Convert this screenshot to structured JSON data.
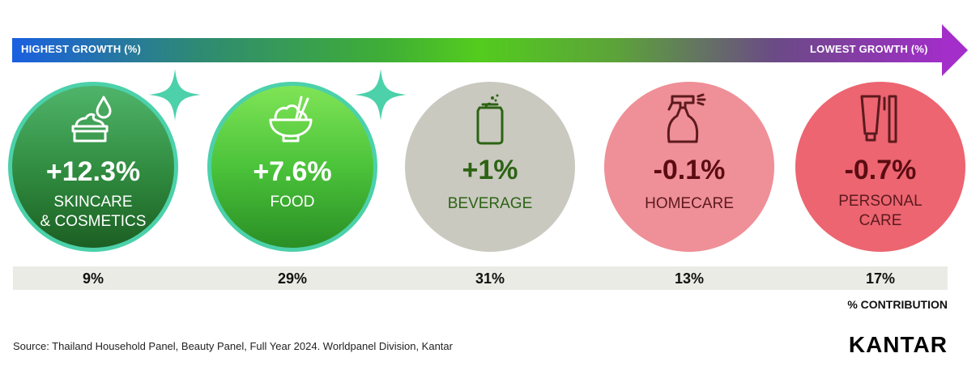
{
  "header": {
    "left_label": "HIGHEST GROWTH (%)",
    "right_label": "LOWEST GROWTH (%)"
  },
  "chart_data": {
    "type": "bar",
    "title": "",
    "categories": [
      "SKINCARE & COSMETICS",
      "FOOD",
      "BEVERAGE",
      "HOMECARE",
      "PERSONAL CARE"
    ],
    "series": [
      {
        "name": "Growth (%)",
        "values": [
          12.3,
          7.6,
          1,
          -0.1,
          -0.7
        ]
      },
      {
        "name": "% CONTRIBUTION",
        "values": [
          9,
          29,
          31,
          13,
          17
        ]
      }
    ]
  },
  "categories": [
    {
      "name": "SKINCARE\n& COSMETICS",
      "growth": "+12.3%",
      "contribution": "9%",
      "icon": "cream-jar-icon",
      "color": "#2f8a3e"
    },
    {
      "name": "FOOD",
      "growth": "+7.6%",
      "contribution": "29%",
      "icon": "rice-bowl-icon",
      "color": "#4bc33a"
    },
    {
      "name": "BEVERAGE",
      "growth": "+1%",
      "contribution": "31%",
      "icon": "can-icon",
      "color": "#c9c9c0"
    },
    {
      "name": "HOMECARE",
      "growth": "-0.1%",
      "contribution": "13%",
      "icon": "spray-bottle-icon",
      "color": "#ef8f97"
    },
    {
      "name": "PERSONAL\nCARE",
      "growth": "-0.7%",
      "contribution": "17%",
      "icon": "toothpaste-toothbrush-icon",
      "color": "#ec6571"
    }
  ],
  "contribution_label": "% CONTRIBUTION",
  "source": "Source: Thailand Household Panel, Beauty Panel, Full Year 2024. Worldpanel Division, Kantar",
  "logo": "KANTAR"
}
